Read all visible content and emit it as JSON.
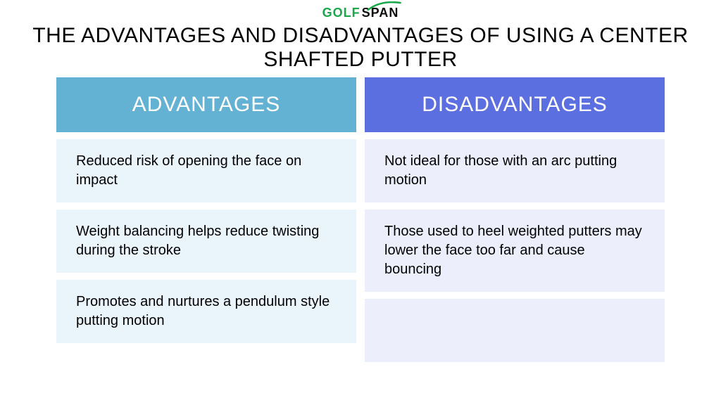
{
  "logo": {
    "text_left": "GOLF",
    "text_right": "SPAN",
    "color_left": "#1aa84a",
    "color_right": "#0a0a0a",
    "swoosh_color": "#1aa84a",
    "fontsize": 18
  },
  "title": {
    "text": "THE ADVANTAGES AND DISADVANTAGES OF USING A CENTER SHAFTED PUTTER",
    "fontsize": 30,
    "color": "#000000"
  },
  "table": {
    "header_fontsize": 30,
    "cell_fontsize": 20,
    "columns": [
      {
        "label": "ADVANTAGES",
        "header_bg": "#63b1d3",
        "cell_bg": "#eaf4fb",
        "cells": [
          "Reduced risk of opening the face on impact",
          "Weight balancing helps reduce twisting during the stroke",
          "Promotes and nurtures a pendulum style putting motion"
        ]
      },
      {
        "label": "DISADVANTAGES",
        "header_bg": "#5c6fe0",
        "cell_bg": "#eceefb",
        "cells": [
          "Not ideal for those with an arc putting motion",
          "Those used to heel weighted putters may lower the face too far and cause bouncing",
          ""
        ]
      }
    ]
  }
}
